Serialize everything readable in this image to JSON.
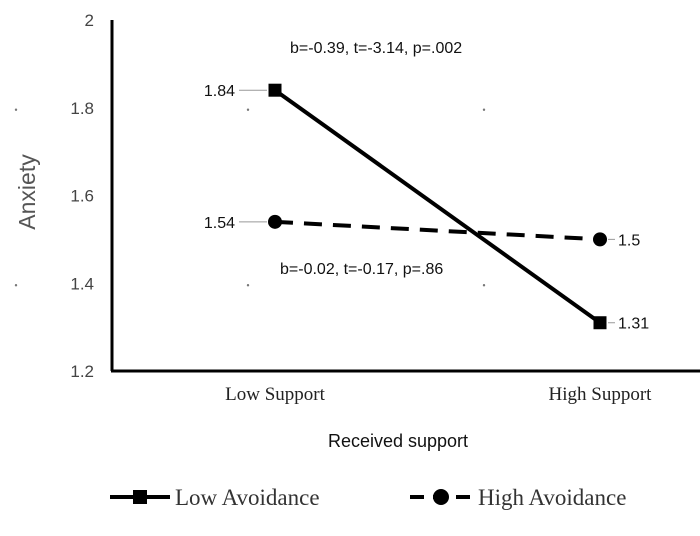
{
  "chart_data": {
    "type": "line",
    "categories": [
      "Low Support",
      "High Support"
    ],
    "series": [
      {
        "name": "Low Avoidance",
        "values": [
          1.84,
          1.31
        ],
        "marker": "square",
        "line_style": "solid",
        "color": "#000000"
      },
      {
        "name": "High Avoidance",
        "values": [
          1.54,
          1.5
        ],
        "marker": "circle",
        "line_style": "dashed",
        "color": "#000000"
      }
    ],
    "data_labels": {
      "low_avoidance": [
        "1.84",
        "1.31"
      ],
      "high_avoidance": [
        "1.54",
        "1.5"
      ]
    },
    "annotations": {
      "low_avoidance_stats": "b=-0.39, t=-3.14, p=.002",
      "high_avoidance_stats": "b=-0.02, t=-0.17, p=.86"
    },
    "xlabel": "Received support",
    "ylabel": "Anxiety",
    "ylim": [
      1.2,
      2.0
    ],
    "yticks": [
      "1.2",
      "1.4",
      "1.6",
      "1.8",
      "2"
    ],
    "legend_position": "bottom",
    "grid": false
  }
}
